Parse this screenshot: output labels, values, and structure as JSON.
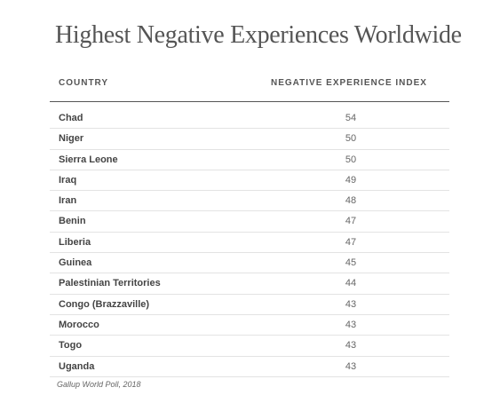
{
  "chart_data": {
    "type": "table",
    "title": "Highest Negative Experiences Worldwide",
    "columns": [
      "COUNTRY",
      "NEGATIVE EXPERIENCE INDEX"
    ],
    "rows": [
      {
        "country": "Chad",
        "value": 54
      },
      {
        "country": "Niger",
        "value": 50
      },
      {
        "country": "Sierra Leone",
        "value": 50
      },
      {
        "country": "Iraq",
        "value": 49
      },
      {
        "country": "Iran",
        "value": 48
      },
      {
        "country": "Benin",
        "value": 47
      },
      {
        "country": "Liberia",
        "value": 47
      },
      {
        "country": "Guinea",
        "value": 45
      },
      {
        "country": "Palestinian Territories",
        "value": 44
      },
      {
        "country": "Congo (Brazzaville)",
        "value": 43
      },
      {
        "country": "Morocco",
        "value": 43
      },
      {
        "country": "Togo",
        "value": 43
      },
      {
        "country": "Uganda",
        "value": 43
      }
    ],
    "source": "Gallup World Poll, 2018"
  },
  "colors": {
    "header_rule": "#555555",
    "row_rule": "#e3e3e3",
    "title_text": "#555555"
  }
}
